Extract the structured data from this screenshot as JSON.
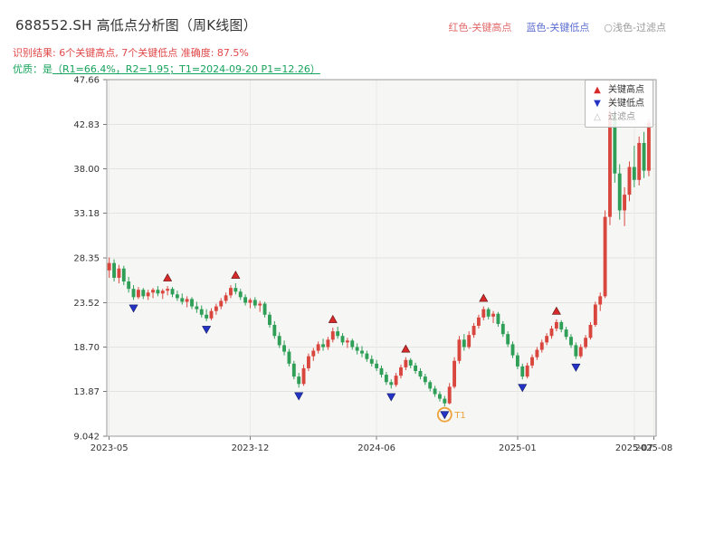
{
  "header": {
    "title": "688552.SH 高低点分析图（周K线图）",
    "legend_right": [
      {
        "label": "红色-关键高点",
        "color": "#e06a6a"
      },
      {
        "label": "蓝色-关键低点",
        "color": "#5d6fd2"
      },
      {
        "label": "○浅色-过滤点",
        "color": "#999999"
      }
    ],
    "result_line": "识别结果: 6个关键高点, 7个关键低点  准确度: 87.5%",
    "quality_prefix": "优质：是",
    "quality_detail": "（R1=66.4%，R2=1.95；T1=2024-09-20 P1=12.26）"
  },
  "chart_data": {
    "type": "candlestick",
    "title": "688552.SH 高低点分析图（周K线图）",
    "xlabel": "",
    "ylabel": "",
    "ylim": [
      9.042,
      47.66
    ],
    "grid": true,
    "colors": {
      "up": "#d9463e",
      "down": "#2f9e57",
      "key_high": "#d62a2a",
      "key_low": "#2433c4",
      "t1": "#eda13a",
      "filtered": "#bbbbbb"
    },
    "y_ticks": [
      {
        "value": 47.66,
        "label": "47.66"
      },
      {
        "value": 42.83,
        "label": "42.83"
      },
      {
        "value": 38.0,
        "label": "38.00"
      },
      {
        "value": 33.18,
        "label": "33.18"
      },
      {
        "value": 28.35,
        "label": "28.35"
      },
      {
        "value": 23.52,
        "label": "23.52"
      },
      {
        "value": 18.7,
        "label": "18.70"
      },
      {
        "value": 13.87,
        "label": "13.87"
      },
      {
        "value": 9.042,
        "label": "9.042"
      }
    ],
    "x_ticks": [
      {
        "i": 0,
        "label": "2023-05"
      },
      {
        "i": 29,
        "label": "2023-12"
      },
      {
        "i": 55,
        "label": "2024-06"
      },
      {
        "i": 84,
        "label": "2025-01"
      },
      {
        "i": 108,
        "label": "2025-07"
      },
      {
        "i": 112,
        "label": "2025-08"
      }
    ],
    "candles": [
      [
        27.0,
        28.4,
        26.2,
        27.8
      ],
      [
        27.8,
        28.2,
        25.8,
        26.2
      ],
      [
        26.2,
        27.6,
        25.6,
        27.2
      ],
      [
        27.2,
        27.5,
        25.4,
        25.8
      ],
      [
        25.8,
        26.3,
        24.6,
        25.0
      ],
      [
        25.0,
        25.4,
        23.8,
        24.1
      ],
      [
        24.1,
        25.2,
        23.9,
        24.9
      ],
      [
        24.9,
        25.1,
        23.9,
        24.2
      ],
      [
        24.2,
        24.9,
        23.8,
        24.6
      ],
      [
        24.6,
        25.1,
        24.0,
        24.9
      ],
      [
        24.9,
        25.3,
        24.2,
        24.5
      ],
      [
        24.5,
        25.0,
        23.9,
        24.8
      ],
      [
        24.8,
        25.3,
        24.3,
        25.0
      ],
      [
        25.0,
        25.2,
        24.1,
        24.4
      ],
      [
        24.4,
        24.8,
        23.7,
        24.0
      ],
      [
        24.0,
        24.5,
        23.3,
        23.6
      ],
      [
        23.6,
        24.2,
        23.0,
        23.9
      ],
      [
        23.9,
        24.1,
        22.8,
        23.1
      ],
      [
        23.1,
        23.6,
        22.4,
        22.8
      ],
      [
        22.8,
        23.2,
        21.9,
        22.2
      ],
      [
        22.2,
        22.8,
        21.5,
        21.8
      ],
      [
        21.8,
        22.9,
        21.6,
        22.6
      ],
      [
        22.6,
        23.4,
        22.2,
        23.1
      ],
      [
        23.1,
        24.0,
        22.8,
        23.7
      ],
      [
        23.7,
        24.6,
        23.4,
        24.3
      ],
      [
        24.3,
        25.4,
        24.0,
        25.1
      ],
      [
        25.1,
        25.6,
        24.4,
        24.7
      ],
      [
        24.7,
        25.0,
        23.8,
        24.1
      ],
      [
        24.1,
        24.4,
        23.2,
        23.5
      ],
      [
        23.5,
        24.0,
        22.9,
        23.8
      ],
      [
        23.8,
        24.1,
        22.9,
        23.2
      ],
      [
        23.2,
        23.7,
        22.5,
        23.4
      ],
      [
        23.4,
        23.6,
        21.9,
        22.2
      ],
      [
        22.2,
        22.5,
        20.8,
        21.1
      ],
      [
        21.1,
        21.5,
        19.6,
        19.9
      ],
      [
        19.9,
        20.3,
        18.6,
        18.9
      ],
      [
        18.9,
        19.4,
        17.8,
        18.2
      ],
      [
        18.2,
        18.5,
        16.6,
        16.9
      ],
      [
        16.9,
        17.2,
        15.2,
        15.5
      ],
      [
        15.5,
        15.9,
        14.3,
        14.7
      ],
      [
        14.7,
        16.8,
        14.5,
        16.4
      ],
      [
        16.4,
        18.0,
        16.1,
        17.7
      ],
      [
        17.7,
        18.6,
        17.2,
        18.3
      ],
      [
        18.3,
        19.3,
        18.0,
        19.0
      ],
      [
        19.0,
        19.6,
        18.3,
        18.7
      ],
      [
        18.7,
        19.8,
        18.4,
        19.5
      ],
      [
        19.5,
        20.8,
        19.2,
        20.4
      ],
      [
        20.4,
        20.9,
        19.6,
        19.9
      ],
      [
        19.9,
        20.2,
        18.9,
        19.2
      ],
      [
        19.2,
        19.7,
        18.6,
        19.4
      ],
      [
        19.4,
        19.6,
        18.4,
        18.7
      ],
      [
        18.7,
        19.1,
        17.9,
        18.3
      ],
      [
        18.3,
        18.8,
        17.6,
        18.0
      ],
      [
        18.0,
        18.3,
        17.1,
        17.4
      ],
      [
        17.4,
        17.8,
        16.6,
        16.9
      ],
      [
        16.9,
        17.3,
        16.1,
        16.4
      ],
      [
        16.4,
        16.7,
        15.4,
        15.7
      ],
      [
        15.7,
        16.0,
        14.6,
        14.9
      ],
      [
        14.9,
        15.2,
        14.2,
        14.6
      ],
      [
        14.6,
        15.9,
        14.4,
        15.6
      ],
      [
        15.6,
        16.8,
        15.3,
        16.5
      ],
      [
        16.5,
        17.6,
        16.2,
        17.3
      ],
      [
        17.3,
        17.5,
        16.4,
        16.7
      ],
      [
        16.7,
        17.0,
        15.8,
        16.1
      ],
      [
        16.1,
        16.4,
        15.2,
        15.5
      ],
      [
        15.5,
        15.8,
        14.6,
        14.9
      ],
      [
        14.9,
        15.1,
        13.9,
        14.2
      ],
      [
        14.2,
        14.5,
        13.3,
        13.6
      ],
      [
        13.6,
        13.9,
        12.8,
        13.1
      ],
      [
        13.1,
        13.4,
        12.26,
        12.6
      ],
      [
        12.6,
        14.8,
        12.5,
        14.4
      ],
      [
        14.4,
        17.6,
        14.2,
        17.2
      ],
      [
        17.2,
        19.9,
        16.9,
        19.5
      ],
      [
        19.5,
        20.1,
        18.3,
        18.7
      ],
      [
        18.7,
        20.4,
        18.5,
        20.0
      ],
      [
        20.0,
        21.3,
        19.7,
        21.0
      ],
      [
        21.0,
        22.2,
        20.7,
        21.9
      ],
      [
        21.9,
        23.1,
        21.6,
        22.8
      ],
      [
        22.8,
        23.0,
        21.7,
        22.0
      ],
      [
        22.0,
        22.6,
        21.3,
        22.3
      ],
      [
        22.3,
        22.5,
        20.9,
        21.2
      ],
      [
        21.2,
        21.5,
        19.8,
        20.1
      ],
      [
        20.1,
        20.4,
        18.7,
        19.0
      ],
      [
        19.0,
        19.3,
        17.5,
        17.8
      ],
      [
        17.8,
        18.1,
        16.3,
        16.6
      ],
      [
        16.6,
        16.9,
        15.2,
        15.5
      ],
      [
        15.5,
        17.0,
        15.3,
        16.7
      ],
      [
        16.7,
        17.9,
        16.4,
        17.6
      ],
      [
        17.6,
        18.7,
        17.3,
        18.4
      ],
      [
        18.4,
        19.5,
        18.1,
        19.2
      ],
      [
        19.2,
        20.2,
        18.9,
        19.9
      ],
      [
        19.9,
        21.0,
        19.6,
        20.7
      ],
      [
        20.7,
        21.7,
        20.4,
        21.4
      ],
      [
        21.4,
        21.6,
        20.3,
        20.6
      ],
      [
        20.6,
        20.9,
        19.5,
        19.8
      ],
      [
        19.8,
        20.1,
        18.6,
        18.9
      ],
      [
        18.9,
        19.2,
        17.4,
        17.7
      ],
      [
        17.7,
        19.0,
        17.5,
        18.7
      ],
      [
        18.7,
        20.0,
        18.5,
        19.7
      ],
      [
        19.7,
        21.4,
        19.5,
        21.1
      ],
      [
        21.1,
        23.6,
        20.9,
        23.3
      ],
      [
        23.3,
        24.6,
        22.6,
        24.2
      ],
      [
        24.2,
        33.5,
        24.0,
        32.8
      ],
      [
        32.8,
        47.5,
        31.9,
        44.0
      ],
      [
        44.0,
        45.0,
        36.5,
        37.5
      ],
      [
        37.5,
        38.5,
        32.5,
        33.5
      ],
      [
        33.5,
        36.0,
        31.8,
        35.2
      ],
      [
        35.2,
        38.8,
        34.5,
        38.2
      ],
      [
        38.2,
        40.5,
        36.0,
        36.8
      ],
      [
        36.8,
        41.5,
        36.2,
        40.8
      ],
      [
        40.8,
        42.0,
        37.0,
        37.8
      ],
      [
        37.8,
        43.4,
        37.2,
        43.0
      ]
    ],
    "key_highs": [
      12,
      26,
      46,
      61,
      77,
      92
    ],
    "key_lows": [
      5,
      20,
      39,
      58,
      69,
      85,
      96
    ],
    "t1": {
      "index": 69,
      "label": "T1",
      "price": 12.26,
      "date": "2024-09-20"
    },
    "legend": [
      {
        "label": "关键高点",
        "marker": "up",
        "color": "#d62a2a"
      },
      {
        "label": "关键低点",
        "marker": "down",
        "color": "#2433c4"
      },
      {
        "label": "过滤点",
        "marker": "open",
        "color": "#bbbbbb"
      }
    ],
    "legend_position": "upper right"
  }
}
